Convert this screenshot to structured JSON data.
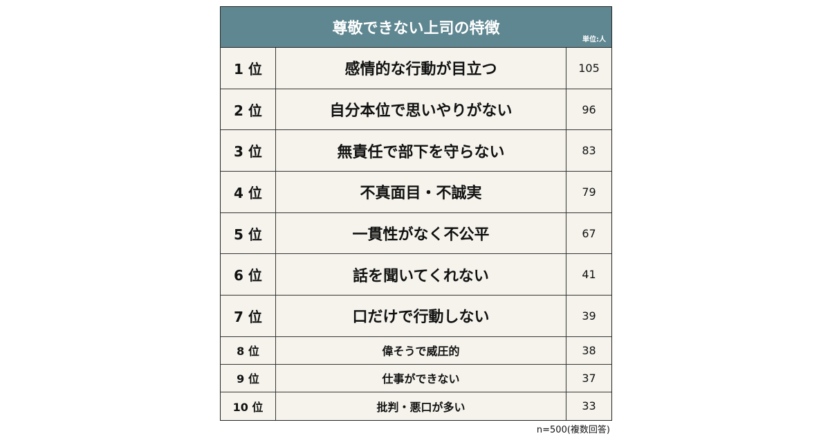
{
  "title": "尊敬できない上司の特徴",
  "unit": "単位:人",
  "colors": {
    "header_bg": "#5f8791",
    "row_bg": "#f5f3ec"
  },
  "rows": [
    {
      "rank": "1 位",
      "label": "感情的な行動が目立つ",
      "value": "105"
    },
    {
      "rank": "2 位",
      "label": "自分本位で思いやりがない",
      "value": "96"
    },
    {
      "rank": "3 位",
      "label": "無責任で部下を守らない",
      "value": "83"
    },
    {
      "rank": "4 位",
      "label": "不真面目・不誠実",
      "value": "79"
    },
    {
      "rank": "5 位",
      "label": "一貫性がなく不公平",
      "value": "67"
    },
    {
      "rank": "6 位",
      "label": "話を聞いてくれない",
      "value": "41"
    },
    {
      "rank": "7 位",
      "label": "口だけで行動しない",
      "value": "39"
    },
    {
      "rank": "8 位",
      "label": "偉そうで威圧的",
      "value": "38"
    },
    {
      "rank": "9 位",
      "label": "仕事ができない",
      "value": "37"
    },
    {
      "rank": "10 位",
      "label": "批判・悪口が多い",
      "value": "33"
    }
  ],
  "footnote": "n=500(複数回答)"
}
